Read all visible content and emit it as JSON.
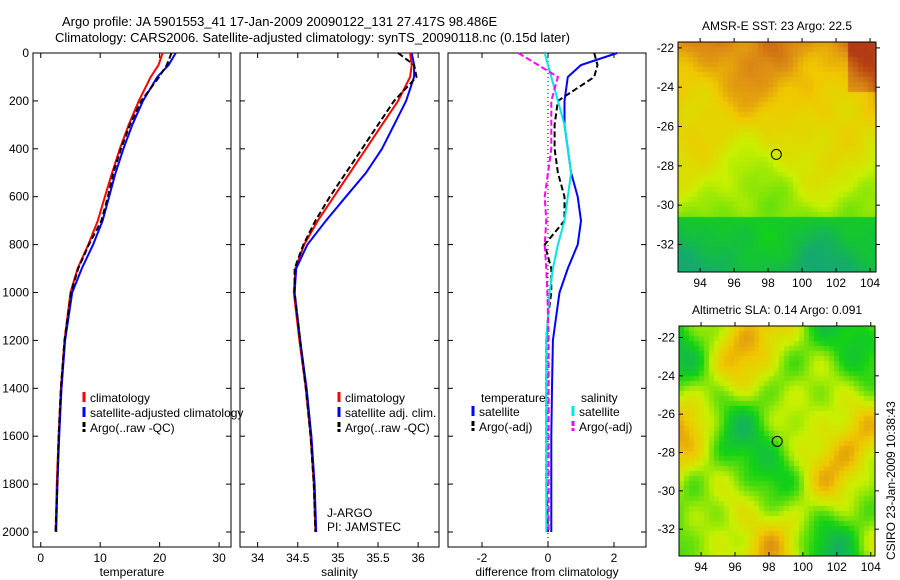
{
  "title": {
    "line1": "Argo profile: JA 5901553_41 17-Jan-2009 20090122_131 27.417S 98.486E",
    "line2": "Climatology: CARS2006. Satellite-adjusted climatology: synTS_20090118.nc (0.15d later)"
  },
  "credit": "CSIRO 23-Jan-2009 10:38:43",
  "colors": {
    "climatology": "#ff0000",
    "satellite": "#0000ff",
    "argo": "#000000",
    "sal_satellite": "#00e5e5",
    "sal_argo": "#ff00ff"
  },
  "chart_data": [
    {
      "type": "line",
      "id": "temperature",
      "xlabel": "temperature",
      "ylabel": "depth",
      "xlim": [
        -1.3,
        32
      ],
      "ylim": [
        2062,
        0
      ],
      "xticks": [
        0,
        10,
        20,
        30
      ],
      "yticks": [
        0,
        200,
        400,
        600,
        800,
        1000,
        1200,
        1400,
        1600,
        1800,
        2000
      ],
      "legend": {
        "placement": "bottom-right",
        "entries": [
          "climatology",
          "satellite-adjusted climatology",
          "Argo(..raw -QC)"
        ]
      },
      "depth": [
        0,
        50,
        100,
        200,
        300,
        400,
        500,
        600,
        700,
        800,
        900,
        1000,
        1200,
        1400,
        1600,
        1800,
        2000
      ],
      "series": [
        {
          "name": "climatology",
          "color": "#ff0000",
          "style": "solid",
          "values": [
            20.5,
            19.8,
            18.5,
            16.5,
            14.8,
            13.3,
            12.0,
            10.8,
            9.6,
            8.0,
            6.2,
            5.0,
            4.0,
            3.4,
            3.0,
            2.7,
            2.5
          ]
        },
        {
          "name": "satellite-adjusted climatology",
          "color": "#0000ff",
          "style": "solid",
          "values": [
            22.7,
            21.5,
            19.6,
            17.2,
            15.4,
            13.9,
            12.6,
            11.5,
            10.4,
            8.8,
            6.9,
            5.3,
            4.1,
            3.5,
            3.1,
            2.8,
            2.6
          ]
        },
        {
          "name": "Argo(..raw -QC)",
          "color": "#000000",
          "style": "dashed",
          "values": [
            22.0,
            21.2,
            19.9,
            16.9,
            15.0,
            13.5,
            12.2,
            11.3,
            10.2,
            8.1,
            6.3,
            5.1,
            4.0,
            3.4,
            3.0,
            2.8,
            2.5
          ]
        }
      ]
    },
    {
      "type": "line",
      "id": "salinity",
      "xlabel": "salinity",
      "ylabel": "depth",
      "xlim": [
        33.78,
        36.26
      ],
      "ylim": [
        2062,
        0
      ],
      "xticks": [
        34,
        34.5,
        35,
        35.5,
        36
      ],
      "legend": {
        "placement": "bottom-right",
        "entries": [
          "climatology",
          "satellite adj. clim.",
          "Argo(..raw -QC)"
        ]
      },
      "annotation": [
        "J-ARGO",
        "PI: JAMSTEC"
      ],
      "depth": [
        0,
        50,
        100,
        200,
        300,
        400,
        500,
        600,
        700,
        800,
        900,
        1000,
        1200,
        1400,
        1600,
        1800,
        2000
      ],
      "series": [
        {
          "name": "climatology",
          "color": "#ff0000",
          "style": "solid",
          "values": [
            35.9,
            35.92,
            35.9,
            35.75,
            35.55,
            35.35,
            35.15,
            34.95,
            34.75,
            34.58,
            34.47,
            34.45,
            34.52,
            34.6,
            34.66,
            34.7,
            34.72
          ]
        },
        {
          "name": "satellite adj. clim.",
          "color": "#0000ff",
          "style": "solid",
          "values": [
            35.92,
            35.95,
            35.95,
            35.85,
            35.7,
            35.55,
            35.35,
            35.1,
            34.85,
            34.62,
            34.48,
            34.46,
            34.53,
            34.61,
            34.67,
            34.71,
            34.73
          ]
        },
        {
          "name": "Argo(..raw -QC)",
          "color": "#000000",
          "style": "dashed",
          "values": [
            35.75,
            35.95,
            35.98,
            35.7,
            35.5,
            35.3,
            35.1,
            34.9,
            34.72,
            34.57,
            34.46,
            34.46,
            34.53,
            34.6,
            34.66,
            34.7,
            34.72
          ]
        }
      ]
    },
    {
      "type": "line",
      "id": "difference",
      "xlabel": "difference from climatology",
      "xlim": [
        -3.03,
        2.97
      ],
      "ylim": [
        2062,
        0
      ],
      "xticks": [
        -2,
        0,
        2
      ],
      "legend": {
        "placement": "bottom",
        "groups": [
          {
            "title": "temperature",
            "entries": [
              "satellite",
              "Argo(-adj)"
            ]
          },
          {
            "title": "salinity",
            "entries": [
              "satellite",
              "Argo(-adj)"
            ]
          }
        ]
      },
      "depth": [
        0,
        50,
        100,
        200,
        300,
        400,
        500,
        600,
        700,
        800,
        900,
        1000,
        1100,
        1200,
        1400,
        1600,
        1800,
        2000
      ],
      "series": [
        {
          "name": "temperature satellite",
          "color": "#0000ff",
          "style": "solid",
          "values": [
            2.1,
            1.0,
            0.6,
            0.5,
            0.5,
            0.6,
            0.7,
            0.9,
            1.0,
            0.9,
            0.6,
            0.35,
            0.25,
            0.15,
            0.12,
            0.1,
            0.1,
            0.1
          ]
        },
        {
          "name": "temperature Argo(-adj)",
          "color": "#000000",
          "style": "dashed",
          "values": [
            1.4,
            1.5,
            1.4,
            0.3,
            0.2,
            0.2,
            0.3,
            0.5,
            0.5,
            -0.1,
            0.1,
            0.1,
            0.0,
            -0.05,
            -0.05,
            -0.05,
            -0.05,
            0.0
          ]
        },
        {
          "name": "salinity satellite",
          "color": "#00e5e5",
          "style": "solid",
          "values": [
            -0.1,
            0.0,
            0.1,
            0.3,
            0.5,
            0.6,
            0.7,
            0.6,
            0.5,
            0.3,
            0.15,
            0.05,
            0.0,
            -0.05,
            -0.05,
            -0.05,
            -0.05,
            -0.05
          ]
        },
        {
          "name": "salinity Argo(-adj)",
          "color": "#ff00ff",
          "style": "dashed",
          "values": [
            -0.9,
            -0.3,
            0.3,
            0.1,
            0.1,
            0.1,
            0.0,
            -0.1,
            -0.05,
            -0.1,
            -0.05,
            -0.02,
            0.0,
            0.02,
            0.02,
            0.02,
            0.02,
            0.02
          ]
        }
      ]
    },
    {
      "type": "heatmap",
      "id": "sst-map",
      "title": "AMSR-E SST: 23 Argo: 22.5",
      "xlim": [
        92.7,
        104.35
      ],
      "ylim": [
        -33.4,
        -21.7
      ],
      "xticks": [
        94,
        96,
        98,
        100,
        102,
        104
      ],
      "yticks": [
        -22,
        -24,
        -26,
        -28,
        -30,
        -32
      ],
      "marker": {
        "lon": 98.486,
        "lat": -27.417
      }
    },
    {
      "type": "heatmap",
      "id": "sla-map",
      "title": "Altimetric SLA: 0.14 Argo: 0.091",
      "xlim": [
        92.7,
        104.25
      ],
      "ylim": [
        -33.4,
        -21.4
      ],
      "xticks": [
        94,
        96,
        98,
        100,
        102,
        104
      ],
      "yticks": [
        -22,
        -24,
        -26,
        -28,
        -30,
        -32
      ],
      "marker": {
        "lon": 98.486,
        "lat": -27.417
      }
    }
  ]
}
